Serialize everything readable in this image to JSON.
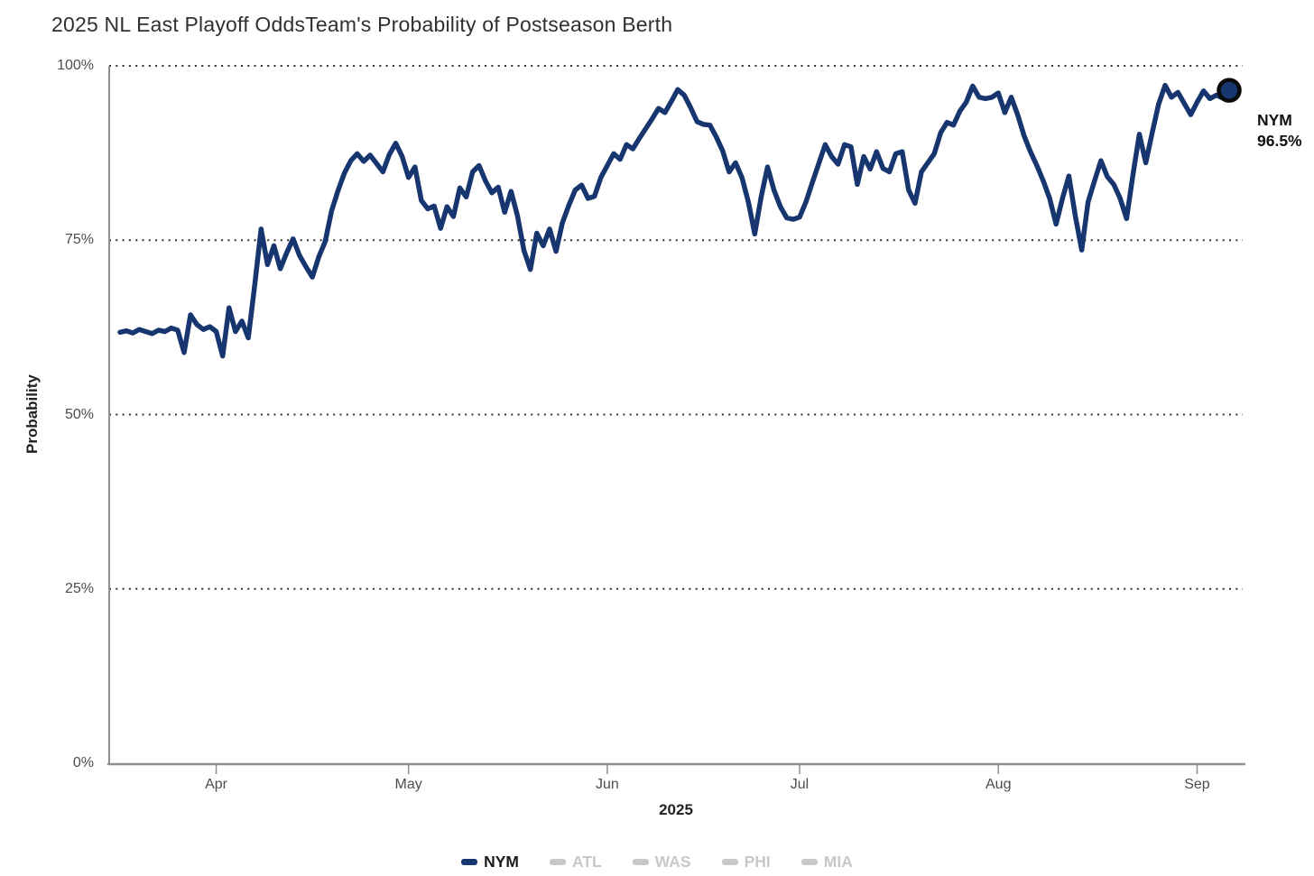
{
  "header": {
    "title_primary": "2025 NL East Playoff Odds",
    "title_secondary": "Team's Probability of Postseason Berth"
  },
  "chart_data": {
    "type": "line",
    "title": "2025 NL East Playoff Odds",
    "subtitle": "Team's Probability of Postseason Berth",
    "xlabel": "2025",
    "ylabel": "Probability",
    "ylim": [
      0,
      100
    ],
    "ytick_labels": [
      "100%",
      "75%",
      "50%",
      "25%",
      "0%"
    ],
    "ytick_values": [
      100,
      75,
      50,
      25,
      0
    ],
    "xtick_labels": [
      "Apr",
      "May",
      "Jun",
      "Jul",
      "Aug",
      "Sep"
    ],
    "xtick_dates": [
      "2025-04-01",
      "2025-05-01",
      "2025-06-01",
      "2025-07-01",
      "2025-08-01",
      "2025-09-01"
    ],
    "grid": "horizontal-dotted",
    "legend_position": "bottom",
    "legend": [
      {
        "label": "NYM",
        "active": true
      },
      {
        "label": "ATL",
        "active": false
      },
      {
        "label": "WAS",
        "active": false
      },
      {
        "label": "PHI",
        "active": false
      },
      {
        "label": "MIA",
        "active": false
      }
    ],
    "colors": {
      "active_line": "#17356f",
      "inactive": "#c6c8ca",
      "grid_dot": "#2f2f2f",
      "axis": "#8f8f8f",
      "tick_text": "#4d4d4d",
      "title_text": "#303030",
      "dot_stroke": "#0a0a0a"
    },
    "end_annotation": {
      "line1": "NYM",
      "line2": "96.5%",
      "value": 96.5
    },
    "series": [
      {
        "name": "NYM",
        "color": "#17356f",
        "final_value": 96.5,
        "points": [
          [
            "2025-03-17",
            61.8
          ],
          [
            "2025-03-18",
            62.0
          ],
          [
            "2025-03-19",
            61.7
          ],
          [
            "2025-03-20",
            62.2
          ],
          [
            "2025-03-21",
            61.9
          ],
          [
            "2025-03-22",
            61.6
          ],
          [
            "2025-03-23",
            62.1
          ],
          [
            "2025-03-24",
            61.9
          ],
          [
            "2025-03-25",
            62.4
          ],
          [
            "2025-03-26",
            62.1
          ],
          [
            "2025-03-27",
            58.9
          ],
          [
            "2025-03-28",
            64.3
          ],
          [
            "2025-03-29",
            62.9
          ],
          [
            "2025-03-30",
            62.2
          ],
          [
            "2025-03-31",
            62.6
          ],
          [
            "2025-04-01",
            61.9
          ],
          [
            "2025-04-02",
            58.4
          ],
          [
            "2025-04-03",
            65.3
          ],
          [
            "2025-04-04",
            61.9
          ],
          [
            "2025-04-05",
            63.4
          ],
          [
            "2025-04-06",
            61.0
          ],
          [
            "2025-04-07",
            68.5
          ],
          [
            "2025-04-08",
            76.6
          ],
          [
            "2025-04-09",
            71.5
          ],
          [
            "2025-04-10",
            74.2
          ],
          [
            "2025-04-11",
            70.9
          ],
          [
            "2025-04-12",
            73.2
          ],
          [
            "2025-04-13",
            75.2
          ],
          [
            "2025-04-14",
            72.8
          ],
          [
            "2025-04-15",
            71.2
          ],
          [
            "2025-04-16",
            69.7
          ],
          [
            "2025-04-17",
            72.6
          ],
          [
            "2025-04-18",
            74.8
          ],
          [
            "2025-04-19",
            79.2
          ],
          [
            "2025-04-20",
            82.1
          ],
          [
            "2025-04-21",
            84.6
          ],
          [
            "2025-04-22",
            86.4
          ],
          [
            "2025-04-23",
            87.4
          ],
          [
            "2025-04-24",
            86.3
          ],
          [
            "2025-04-25",
            87.2
          ],
          [
            "2025-04-26",
            86.0
          ],
          [
            "2025-04-27",
            84.8
          ],
          [
            "2025-04-28",
            87.3
          ],
          [
            "2025-04-29",
            88.9
          ],
          [
            "2025-04-30",
            87.0
          ],
          [
            "2025-05-01",
            84.0
          ],
          [
            "2025-05-02",
            85.5
          ],
          [
            "2025-05-03",
            80.7
          ],
          [
            "2025-05-04",
            79.5
          ],
          [
            "2025-05-05",
            79.9
          ],
          [
            "2025-05-06",
            76.7
          ],
          [
            "2025-05-07",
            79.8
          ],
          [
            "2025-05-08",
            78.4
          ],
          [
            "2025-05-09",
            82.5
          ],
          [
            "2025-05-10",
            81.2
          ],
          [
            "2025-05-11",
            84.8
          ],
          [
            "2025-05-12",
            85.7
          ],
          [
            "2025-05-13",
            83.5
          ],
          [
            "2025-05-14",
            81.8
          ],
          [
            "2025-05-15",
            82.6
          ],
          [
            "2025-05-16",
            79.0
          ],
          [
            "2025-05-17",
            82.0
          ],
          [
            "2025-05-18",
            78.5
          ],
          [
            "2025-05-19",
            73.5
          ],
          [
            "2025-05-20",
            70.8
          ],
          [
            "2025-05-21",
            76.0
          ],
          [
            "2025-05-22",
            74.2
          ],
          [
            "2025-05-23",
            76.6
          ],
          [
            "2025-05-24",
            73.4
          ],
          [
            "2025-05-25",
            77.5
          ],
          [
            "2025-05-26",
            80.0
          ],
          [
            "2025-05-27",
            82.2
          ],
          [
            "2025-05-28",
            82.9
          ],
          [
            "2025-05-29",
            81.0
          ],
          [
            "2025-05-30",
            81.3
          ],
          [
            "2025-05-31",
            84.0
          ],
          [
            "2025-06-01",
            85.7
          ],
          [
            "2025-06-02",
            87.4
          ],
          [
            "2025-06-03",
            86.6
          ],
          [
            "2025-06-04",
            88.7
          ],
          [
            "2025-06-05",
            88.1
          ],
          [
            "2025-06-06",
            89.6
          ],
          [
            "2025-06-07",
            91.0
          ],
          [
            "2025-06-08",
            92.4
          ],
          [
            "2025-06-09",
            93.9
          ],
          [
            "2025-06-10",
            93.3
          ],
          [
            "2025-06-11",
            94.9
          ],
          [
            "2025-06-12",
            96.6
          ],
          [
            "2025-06-13",
            95.8
          ],
          [
            "2025-06-14",
            94.0
          ],
          [
            "2025-06-15",
            92.0
          ],
          [
            "2025-06-16",
            91.6
          ],
          [
            "2025-06-17",
            91.5
          ],
          [
            "2025-06-18",
            89.8
          ],
          [
            "2025-06-19",
            87.8
          ],
          [
            "2025-06-20",
            84.8
          ],
          [
            "2025-06-21",
            86.1
          ],
          [
            "2025-06-22",
            84.0
          ],
          [
            "2025-06-23",
            80.5
          ],
          [
            "2025-06-24",
            75.9
          ],
          [
            "2025-06-25",
            81.2
          ],
          [
            "2025-06-26",
            85.5
          ],
          [
            "2025-06-27",
            82.2
          ],
          [
            "2025-06-28",
            79.8
          ],
          [
            "2025-06-29",
            78.2
          ],
          [
            "2025-06-30",
            78.0
          ],
          [
            "2025-07-01",
            78.3
          ],
          [
            "2025-07-02",
            80.5
          ],
          [
            "2025-07-03",
            83.3
          ],
          [
            "2025-07-04",
            86.0
          ],
          [
            "2025-07-05",
            88.7
          ],
          [
            "2025-07-06",
            87.0
          ],
          [
            "2025-07-07",
            85.9
          ],
          [
            "2025-07-08",
            88.7
          ],
          [
            "2025-07-09",
            88.4
          ],
          [
            "2025-07-10",
            83.0
          ],
          [
            "2025-07-11",
            87.0
          ],
          [
            "2025-07-12",
            85.2
          ],
          [
            "2025-07-13",
            87.7
          ],
          [
            "2025-07-14",
            85.3
          ],
          [
            "2025-07-15",
            84.8
          ],
          [
            "2025-07-16",
            87.4
          ],
          [
            "2025-07-17",
            87.7
          ],
          [
            "2025-07-18",
            82.2
          ],
          [
            "2025-07-19",
            80.3
          ],
          [
            "2025-07-20",
            84.8
          ],
          [
            "2025-07-21",
            86.1
          ],
          [
            "2025-07-22",
            87.4
          ],
          [
            "2025-07-23",
            90.4
          ],
          [
            "2025-07-24",
            91.9
          ],
          [
            "2025-07-25",
            91.5
          ],
          [
            "2025-07-26",
            93.5
          ],
          [
            "2025-07-27",
            94.8
          ],
          [
            "2025-07-28",
            97.1
          ],
          [
            "2025-07-29",
            95.5
          ],
          [
            "2025-07-30",
            95.3
          ],
          [
            "2025-07-31",
            95.5
          ],
          [
            "2025-08-01",
            96.1
          ],
          [
            "2025-08-02",
            93.3
          ],
          [
            "2025-08-03",
            95.5
          ],
          [
            "2025-08-04",
            93.0
          ],
          [
            "2025-08-05",
            90.0
          ],
          [
            "2025-08-06",
            87.7
          ],
          [
            "2025-08-07",
            85.7
          ],
          [
            "2025-08-08",
            83.5
          ],
          [
            "2025-08-09",
            81.0
          ],
          [
            "2025-08-10",
            77.3
          ],
          [
            "2025-08-11",
            81.0
          ],
          [
            "2025-08-12",
            84.2
          ],
          [
            "2025-08-13",
            78.5
          ],
          [
            "2025-08-14",
            73.6
          ],
          [
            "2025-08-15",
            80.5
          ],
          [
            "2025-08-16",
            83.5
          ],
          [
            "2025-08-17",
            86.4
          ],
          [
            "2025-08-18",
            84.1
          ],
          [
            "2025-08-19",
            83.0
          ],
          [
            "2025-08-20",
            81.0
          ],
          [
            "2025-08-21",
            78.1
          ],
          [
            "2025-08-22",
            84.4
          ],
          [
            "2025-08-23",
            90.2
          ],
          [
            "2025-08-24",
            86.1
          ],
          [
            "2025-08-25",
            90.4
          ],
          [
            "2025-08-26",
            94.5
          ],
          [
            "2025-08-27",
            97.2
          ],
          [
            "2025-08-28",
            95.5
          ],
          [
            "2025-08-29",
            96.2
          ],
          [
            "2025-08-30",
            94.6
          ],
          [
            "2025-08-31",
            93.0
          ],
          [
            "2025-09-01",
            94.8
          ],
          [
            "2025-09-02",
            96.4
          ],
          [
            "2025-09-03",
            95.3
          ],
          [
            "2025-09-04",
            95.8
          ],
          [
            "2025-09-05",
            95.4
          ],
          [
            "2025-09-06",
            96.5
          ]
        ]
      }
    ]
  }
}
